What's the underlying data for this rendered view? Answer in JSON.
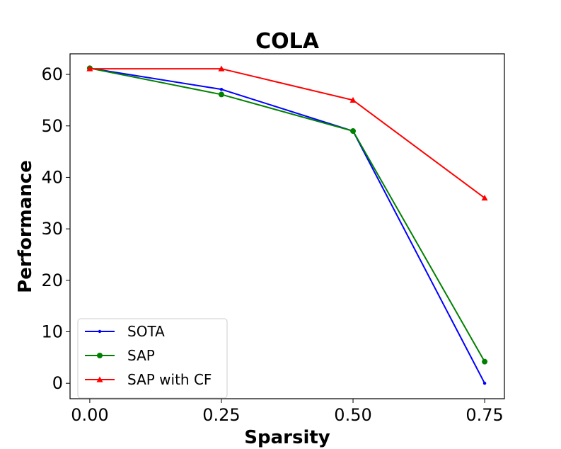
{
  "chart_data": {
    "type": "line",
    "title": "COLA",
    "xlabel": "Sparsity",
    "ylabel": "Performance",
    "x": [
      0.0,
      0.25,
      0.5,
      0.75
    ],
    "xticks": [
      "0.00",
      "0.25",
      "0.50",
      "0.75"
    ],
    "yticks": [
      "0",
      "10",
      "20",
      "30",
      "40",
      "50",
      "60"
    ],
    "xlim": [
      -0.0375,
      0.7875
    ],
    "ylim": [
      -3,
      64
    ],
    "grid": false,
    "legend_position": "lower-left",
    "series": [
      {
        "name": "SOTA",
        "values": [
          61.2,
          57.1,
          49.0,
          0.0
        ],
        "color": "#0000ff",
        "marker": "dot"
      },
      {
        "name": "SAP",
        "values": [
          61.2,
          56.1,
          49.0,
          4.2
        ],
        "color": "#008000",
        "marker": "circle"
      },
      {
        "name": "SAP with CF",
        "values": [
          61.1,
          61.1,
          55.0,
          36.0
        ],
        "color": "#ff0000",
        "marker": "triangle"
      }
    ]
  }
}
